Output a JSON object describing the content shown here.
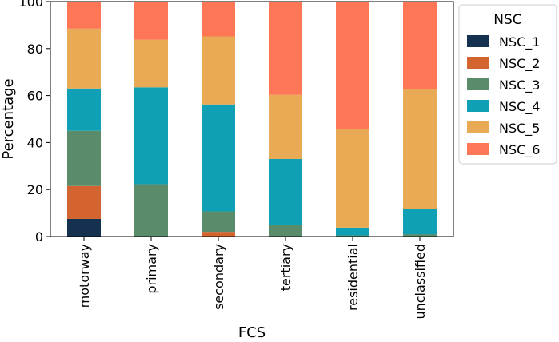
{
  "chart_data": {
    "type": "bar",
    "stacked": true,
    "xlabel": "FCS",
    "ylabel": "Percentage",
    "ylim": [
      0,
      100
    ],
    "yticks": [
      0,
      20,
      40,
      60,
      80,
      100
    ],
    "categories": [
      "motorway",
      "primary",
      "secondary",
      "tertiary",
      "residential",
      "unclassified"
    ],
    "legend": {
      "title": "NSC",
      "placement": "outside-right-top"
    },
    "series": [
      {
        "name": "NSC_1",
        "color": "#14324f",
        "values": [
          7.5,
          0,
          0,
          0,
          0,
          0
        ]
      },
      {
        "name": "NSC_2",
        "color": "#d4642f",
        "values": [
          14,
          0,
          2,
          0,
          0,
          0
        ]
      },
      {
        "name": "NSC_3",
        "color": "#5a8c6b",
        "values": [
          23.5,
          22.3,
          8.7,
          5,
          0.5,
          1
        ]
      },
      {
        "name": "NSC_4",
        "color": "#10a0b5",
        "values": [
          18,
          41.2,
          45.5,
          28,
          3.3,
          10.8
        ]
      },
      {
        "name": "NSC_5",
        "color": "#e9aa55",
        "values": [
          25.5,
          20.3,
          29,
          27.3,
          41.9,
          51
        ]
      },
      {
        "name": "NSC_6",
        "color": "#fd7656",
        "values": [
          11.5,
          16.2,
          14.8,
          39.7,
          54.3,
          37.2
        ]
      }
    ]
  }
}
